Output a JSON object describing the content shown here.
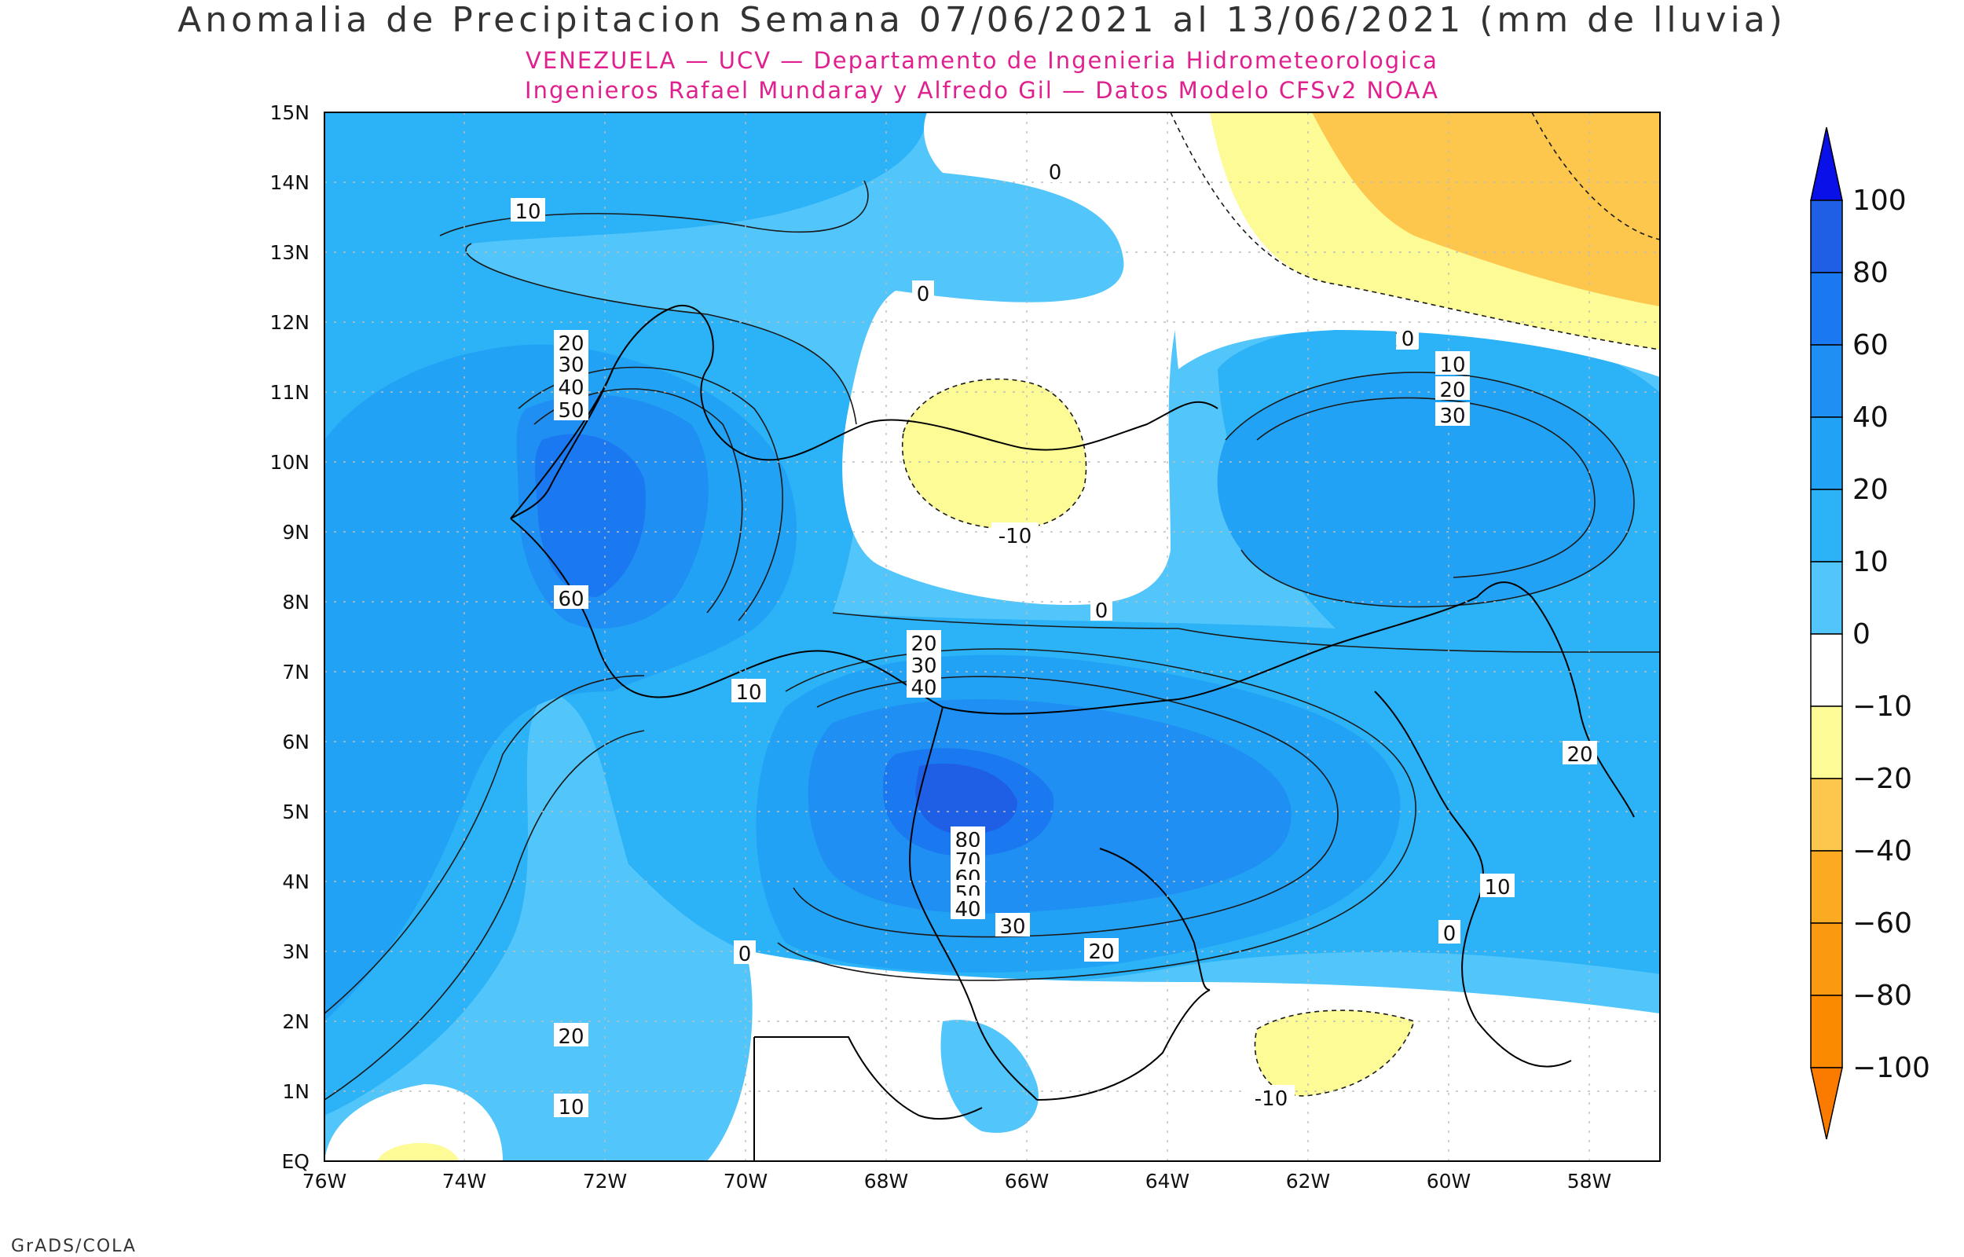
{
  "title": "Anomalia de Precipitacion Semana 07/06/2021 al 13/06/2021 (mm de lluvia)",
  "subtitle_line1": "VENEZUELA — UCV — Departamento de Ingenieria Hidrometeorologica",
  "subtitle_line2": "Ingenieros Rafael Mundaray y Alfredo Gil — Datos Modelo CFSv2 NOAA",
  "footer": "GrADS/COLA",
  "map": {
    "lon_range": [
      -76,
      -57
    ],
    "lat_range": [
      0,
      15
    ],
    "lon_ticks": [
      "76W",
      "74W",
      "72W",
      "70W",
      "68W",
      "66W",
      "64W",
      "62W",
      "60W",
      "58W"
    ],
    "lat_ticks": [
      "EQ",
      "1N",
      "2N",
      "3N",
      "4N",
      "5N",
      "6N",
      "7N",
      "8N",
      "9N",
      "10N",
      "11N",
      "12N",
      "13N",
      "14N",
      "15N"
    ],
    "contour_labels": [
      "10",
      "0",
      "0",
      "20",
      "30",
      "40",
      "50",
      "60",
      "-10",
      "0",
      "10",
      "0",
      "10",
      "20",
      "30",
      "20",
      "30",
      "40",
      "10",
      "80",
      "70",
      "60",
      "50",
      "40",
      "30",
      "20",
      "10",
      "0",
      "0",
      "20",
      "10",
      "-10",
      "20"
    ]
  },
  "colorbar": {
    "labels": [
      "100",
      "80",
      "60",
      "40",
      "20",
      "10",
      "0",
      "−10",
      "−20",
      "−40",
      "−60",
      "−80",
      "−100"
    ],
    "colors": [
      "#1f5fe6",
      "#1a78f0",
      "#1f8ff3",
      "#22a2f5",
      "#2bb2f7",
      "#52c6fb",
      "#ffffff",
      "#fdfb96",
      "#fcc74c",
      "#fbaa22",
      "#fb9a10",
      "#fb8a00"
    ],
    "top_arrow_color": "#0a10e8",
    "bottom_arrow_color": "#fb7a00"
  }
}
